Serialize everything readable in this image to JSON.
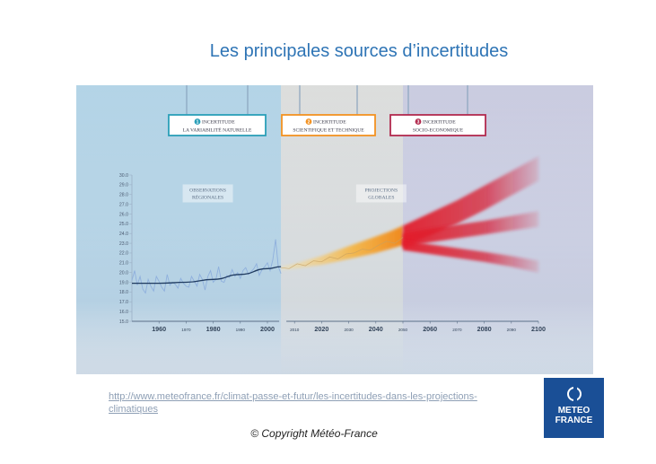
{
  "page": {
    "title": "Les principales sources d’incertitudes"
  },
  "footer": {
    "source_url_line1": "http://www.meteofrance.fr/climat-passe-et-futur/les-incertitudes-dans-les-projections-",
    "source_url_line2": "climatiques",
    "copyright": "© Copyright Météo-France"
  },
  "logo": {
    "line1": "METEO",
    "line2": "FRANCE",
    "color": "#1a4f96"
  },
  "chart_data": {
    "type": "line",
    "title": "",
    "xlabel": "",
    "ylabel": "",
    "xlim": [
      1950,
      2100
    ],
    "ylim": [
      15.0,
      30.0
    ],
    "grid": false,
    "x_ticks": [
      {
        "value": 1960,
        "label": "1960",
        "major": true
      },
      {
        "value": 1970,
        "label": "1970",
        "major": false
      },
      {
        "value": 1980,
        "label": "1980",
        "major": true
      },
      {
        "value": 1990,
        "label": "1990",
        "major": false
      },
      {
        "value": 2000,
        "label": "2000",
        "major": true
      },
      {
        "value": 2010,
        "label": "2010",
        "major": false
      },
      {
        "value": 2020,
        "label": "2020",
        "major": true
      },
      {
        "value": 2030,
        "label": "2030",
        "major": false
      },
      {
        "value": 2040,
        "label": "2040",
        "major": true
      },
      {
        "value": 2050,
        "label": "2050",
        "major": false
      },
      {
        "value": 2060,
        "label": "2060",
        "major": true
      },
      {
        "value": 2070,
        "label": "2070",
        "major": false
      },
      {
        "value": 2080,
        "label": "2080",
        "major": true
      },
      {
        "value": 2090,
        "label": "2090",
        "major": false
      },
      {
        "value": 2100,
        "label": "2100",
        "major": true
      }
    ],
    "y_ticks": [
      "15.0",
      "16.0",
      "17.0",
      "18.0",
      "19.0",
      "20.0",
      "21.0",
      "22.0",
      "23.0",
      "24.0",
      "25.0",
      "26.0",
      "27.0",
      "28.0",
      "29.0",
      "30.0"
    ],
    "zones": [
      {
        "number": "1",
        "line1": "INCERTITUDE",
        "line2": "LA VARIABILITÉ NATURELLE",
        "x_range": [
          1950,
          2005
        ],
        "color": "#2a9fb8",
        "tint": "#7fb8d8"
      },
      {
        "number": "2",
        "line1": "INCERTITUDE",
        "line2": "SCIENTIFIQUE ET TECHNIQUE",
        "x_range": [
          2005,
          2050
        ],
        "color": "#f39221",
        "tint": "#c9c9c5"
      },
      {
        "number": "3",
        "line1": "INCERTITUDE",
        "line2": "SOCIO-ECONOMIQUE",
        "x_range": [
          2050,
          2100
        ],
        "color": "#b22a4e",
        "tint": "#a9a9cc"
      }
    ],
    "annotations": [
      {
        "line1": "OBSERVATIONS",
        "line2": "RÉGIONALES",
        "x": 1978,
        "y": 28.3
      },
      {
        "line1": "PROJECTIONS",
        "line2": "GLOBALES",
        "x": 2042,
        "y": 28.3
      }
    ],
    "series": [
      {
        "role": "observations",
        "color": "#8fb0dd",
        "x": [
          1950,
          1951,
          1952,
          1953,
          1954,
          1955,
          1956,
          1957,
          1958,
          1959,
          1960,
          1961,
          1962,
          1963,
          1964,
          1965,
          1966,
          1967,
          1968,
          1969,
          1970,
          1971,
          1972,
          1973,
          1974,
          1975,
          1976,
          1977,
          1978,
          1979,
          1980,
          1981,
          1982,
          1983,
          1984,
          1985,
          1986,
          1987,
          1988,
          1989,
          1990,
          1991,
          1992,
          1993,
          1994,
          1995,
          1996,
          1997,
          1998,
          1999,
          2000,
          2001,
          2002,
          2003,
          2004,
          2005
        ],
        "y": [
          19.2,
          20.2,
          18.7,
          19.6,
          18.3,
          17.9,
          19.3,
          18.6,
          18.1,
          19.6,
          19.1,
          18.5,
          18.1,
          19.8,
          18.7,
          19.0,
          18.8,
          18.4,
          19.4,
          18.9,
          18.6,
          18.5,
          19.6,
          19.1,
          18.6,
          19.8,
          19.3,
          18.2,
          19.6,
          20.2,
          19.0,
          19.3,
          20.6,
          19.1,
          19.0,
          19.7,
          19.5,
          20.3,
          19.6,
          20.0,
          19.4,
          20.2,
          20.5,
          19.8,
          20.1,
          20.4,
          20.9,
          19.7,
          20.3,
          20.6,
          21.0,
          20.2,
          21.3,
          23.4,
          20.6,
          19.9
        ]
      },
      {
        "role": "observations-trend",
        "color": "#1f3a5f",
        "x": [
          1950,
          1960,
          1970,
          1980,
          1990,
          2000,
          2005
        ],
        "y": [
          18.9,
          18.9,
          19.0,
          19.3,
          19.8,
          20.4,
          20.6
        ]
      },
      {
        "role": "model-spread",
        "color": "#f39a2a",
        "x": [
          2005,
          2010,
          2015,
          2020,
          2025,
          2030,
          2035,
          2040,
          2045,
          2050
        ],
        "y_low": [
          20.3,
          20.4,
          20.6,
          20.8,
          21.1,
          21.4,
          21.7,
          22.0,
          22.4,
          22.8
        ],
        "y_high": [
          20.6,
          20.9,
          21.3,
          21.7,
          22.2,
          22.7,
          23.2,
          23.7,
          24.2,
          24.8
        ]
      },
      {
        "role": "projection-simulations",
        "color": "#c8a060",
        "x": [
          2005,
          2008,
          2011,
          2014,
          2017,
          2020,
          2023,
          2026,
          2029,
          2032,
          2035,
          2038,
          2041,
          2044,
          2047,
          2050
        ],
        "y": [
          20.5,
          20.4,
          20.9,
          20.7,
          21.2,
          21.1,
          21.6,
          21.4,
          21.9,
          22.0,
          22.4,
          22.3,
          22.8,
          23.2,
          23.0,
          23.6
        ]
      },
      {
        "role": "scenario-high",
        "color": "#e3202c",
        "x": [
          2050,
          2060,
          2070,
          2080,
          2090,
          2100
        ],
        "y_low": [
          22.7,
          23.8,
          25.0,
          26.4,
          27.9,
          29.4
        ],
        "y_high": [
          24.8,
          26.1,
          27.4,
          28.9,
          30.4,
          31.9
        ]
      },
      {
        "role": "scenario-medium",
        "color": "#e3202c",
        "x": [
          2050,
          2060,
          2070,
          2080,
          2090,
          2100
        ],
        "y_low": [
          22.6,
          23.1,
          23.5,
          23.9,
          24.3,
          24.7
        ],
        "y_high": [
          24.0,
          24.5,
          24.9,
          25.3,
          25.8,
          26.3
        ]
      },
      {
        "role": "scenario-low",
        "color": "#e3202c",
        "x": [
          2050,
          2060,
          2070,
          2080,
          2090,
          2100
        ],
        "y_low": [
          22.3,
          21.9,
          21.5,
          21.1,
          20.6,
          20.0
        ],
        "y_high": [
          23.3,
          22.9,
          22.5,
          22.1,
          21.7,
          21.2
        ]
      }
    ]
  }
}
